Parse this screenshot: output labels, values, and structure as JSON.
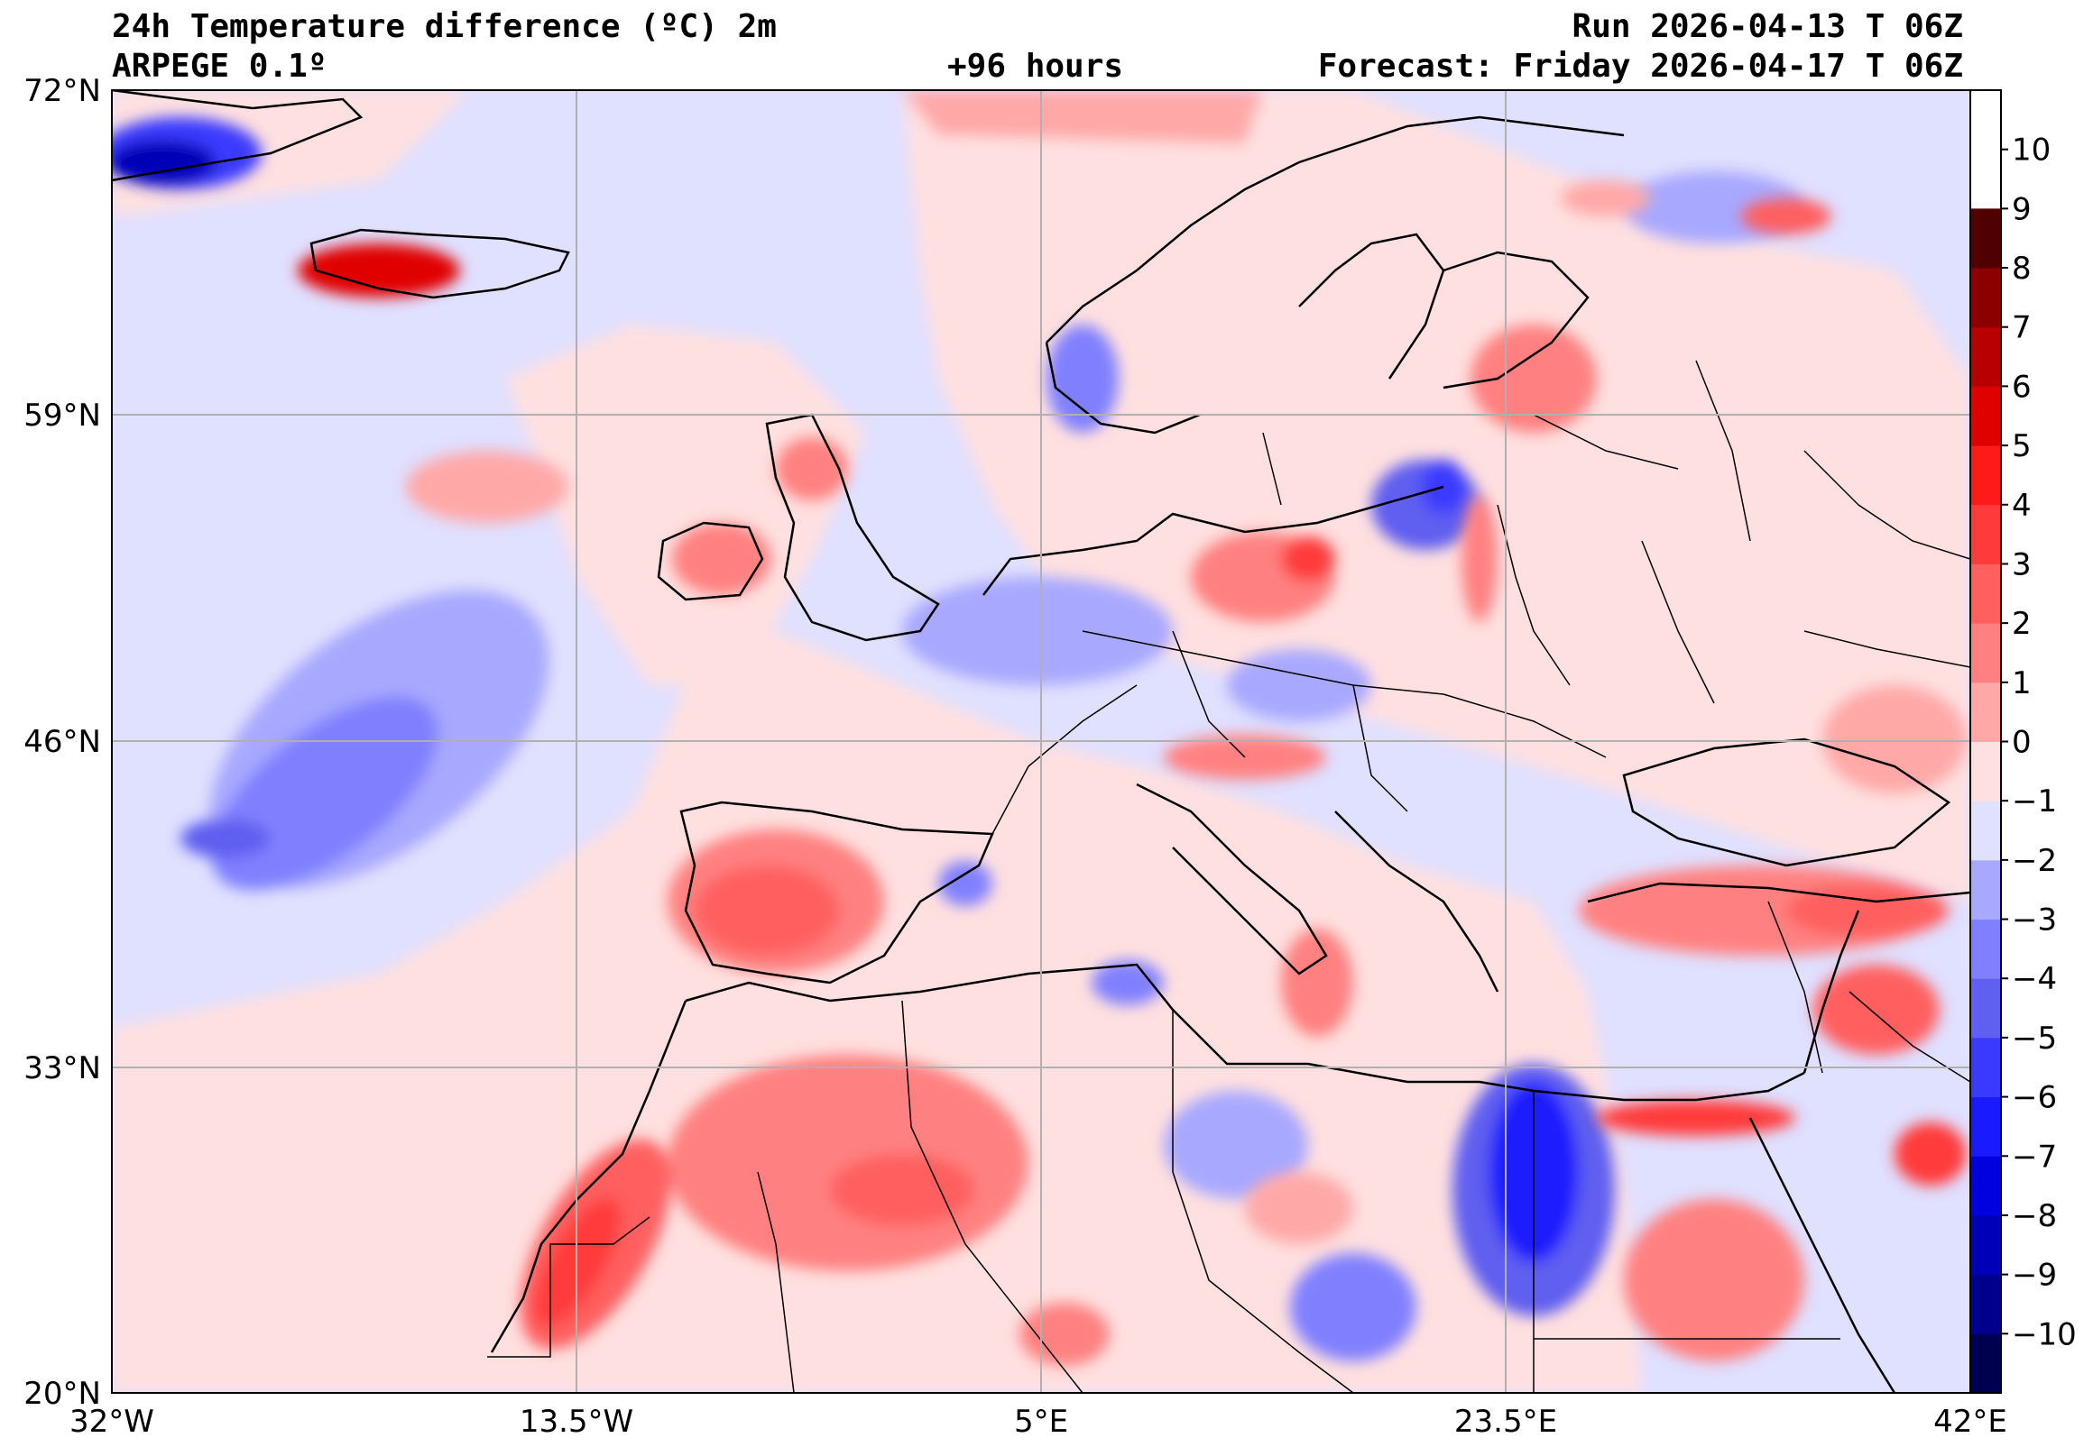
{
  "header": {
    "title": "24h Temperature difference (ºC) 2m",
    "model": "ARPEGE 0.1º",
    "lead": "+96 hours",
    "run": "Run 2026-04-13 T 06Z",
    "forecast": "Forecast: Friday 2026-04-17 T 06Z"
  },
  "axes": {
    "lat_labels": [
      "72°N",
      "59°N",
      "46°N",
      "33°N",
      "20°N"
    ],
    "lon_labels": [
      "32°W",
      "13.5°W",
      "5°E",
      "23.5°E",
      "42°E"
    ]
  },
  "colorbar": {
    "tick_labels": [
      "10",
      "9",
      "8",
      "7",
      "6",
      "5",
      "4",
      "3",
      "2",
      "1",
      "0",
      "−1",
      "−2",
      "−3",
      "−4",
      "−5",
      "−6",
      "−7",
      "−8",
      "−9",
      "−10"
    ],
    "colors": [
      "#000050",
      "#00008b",
      "#0000b8",
      "#0000e0",
      "#1a1aff",
      "#3a3aff",
      "#5f5ff0",
      "#8080ff",
      "#a8a8ff",
      "#e0e0ff",
      "#ffe0e0",
      "#ffa8a8",
      "#ff8080",
      "#ff5f5f",
      "#ff3a3a",
      "#ff1a1a",
      "#e00000",
      "#b80000",
      "#8b0000",
      "#500000"
    ],
    "boundaries": [
      -11,
      -10,
      -9,
      -8,
      -7,
      -6,
      -5,
      -4,
      -3,
      -2,
      -1,
      0,
      1,
      2,
      3,
      4,
      5,
      6,
      7,
      8,
      9,
      10,
      11
    ]
  },
  "colors": {
    "sea_light": "#e0e0ff",
    "land_light": "#ffe0e0",
    "warm": "#ff8080",
    "warm_strong": "#ff3a3a",
    "cool": "#a8a8ff",
    "cool_strong": "#3a3aff"
  }
}
